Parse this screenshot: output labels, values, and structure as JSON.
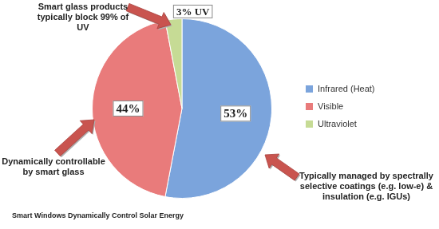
{
  "chart_data": {
    "type": "pie",
    "title": "Smart Windows Dynamically Control Solar Energy",
    "categories": [
      "Infrared (Heat)",
      "Visible",
      "Ultraviolet"
    ],
    "values": [
      53,
      44,
      3
    ],
    "value_labels": [
      "53%",
      "44%",
      "3% UV"
    ],
    "colors": [
      "#7ba4dc",
      "#e97b7b",
      "#c6db95"
    ],
    "legend": "right",
    "data_labels": true,
    "annotations": [
      "Smart glass products typically block 99% of UV",
      "Dynamically controllable by smart glass",
      "Typically managed by spectrally selective coatings (e.g. low-e) & insulation (e.g. IGUs)"
    ]
  }
}
